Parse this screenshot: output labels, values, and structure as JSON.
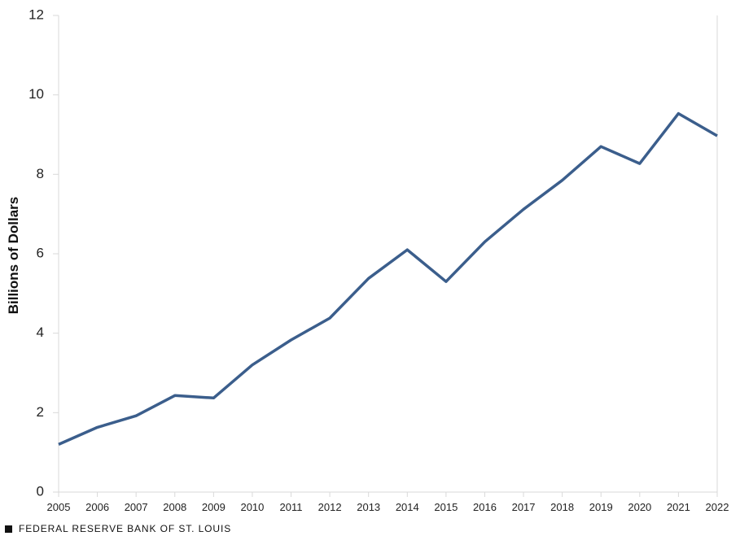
{
  "chart_data": {
    "type": "line",
    "title": "",
    "xlabel": "",
    "ylabel": "Billions of Dollars",
    "ylim": [
      0,
      12
    ],
    "yticks": [
      0,
      2,
      4,
      6,
      8,
      10,
      12
    ],
    "xlim": [
      2005,
      2022
    ],
    "grid": false,
    "legend": "none",
    "line_color": "#3B5E8C",
    "categories": [
      "2005",
      "2006",
      "2007",
      "2008",
      "2009",
      "2010",
      "2011",
      "2012",
      "2013",
      "2014",
      "2015",
      "2016",
      "2017",
      "2018",
      "2019",
      "2020",
      "2021",
      "2022"
    ],
    "series": [
      {
        "values": [
          1.2,
          1.63,
          1.92,
          2.43,
          2.37,
          3.2,
          3.83,
          4.38,
          5.38,
          6.1,
          5.3,
          6.3,
          7.12,
          7.85,
          8.7,
          8.27,
          9.53,
          8.97
        ]
      }
    ]
  },
  "footer": {
    "source": "FEDERAL RESERVE BANK OF ST. LOUIS",
    "icon": "square-icon"
  }
}
